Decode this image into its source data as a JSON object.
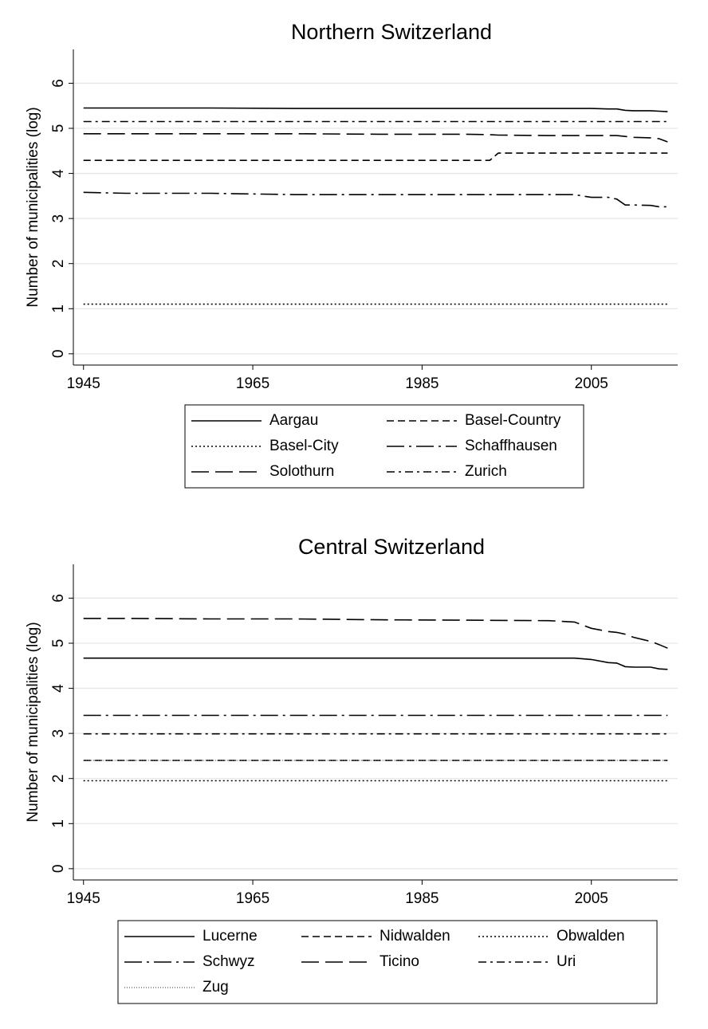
{
  "chart_data": [
    {
      "type": "line",
      "title": "Northern Switzerland",
      "ylabel": "Number of municipalities (log)",
      "x": [
        1945,
        1950,
        1960,
        1970,
        1980,
        1990,
        1993,
        1994,
        2000,
        2003,
        2005,
        2007,
        2008,
        2009,
        2010,
        2012,
        2013,
        2014
      ],
      "xlim": [
        1943.8,
        2015.2
      ],
      "xticks": [
        1945,
        1965,
        1985,
        2005
      ],
      "ylim": [
        -0.25,
        6.75
      ],
      "yticks": [
        0,
        1,
        2,
        3,
        4,
        5,
        6
      ],
      "grid": true,
      "legend": "bottom",
      "series": [
        {
          "name": "Aargau",
          "color": "#000000",
          "dash": "solid",
          "values": [
            5.45,
            5.45,
            5.45,
            5.44,
            5.44,
            5.44,
            5.44,
            5.44,
            5.44,
            5.44,
            5.44,
            5.43,
            5.43,
            5.4,
            5.39,
            5.39,
            5.38,
            5.37
          ]
        },
        {
          "name": "Basel-Country",
          "color": "#000000",
          "dash": "dash",
          "values": [
            4.29,
            4.29,
            4.29,
            4.29,
            4.29,
            4.29,
            4.29,
            4.45,
            4.45,
            4.45,
            4.45,
            4.45,
            4.45,
            4.45,
            4.45,
            4.45,
            4.45,
            4.45
          ]
        },
        {
          "name": "Basel-City",
          "color": "#000000",
          "dash": "dot",
          "values": [
            1.1,
            1.1,
            1.1,
            1.1,
            1.1,
            1.1,
            1.1,
            1.1,
            1.1,
            1.1,
            1.1,
            1.1,
            1.1,
            1.1,
            1.1,
            1.1,
            1.1,
            1.1
          ]
        },
        {
          "name": "Schaffhausen",
          "color": "#000000",
          "dash": "longdashdot",
          "values": [
            3.58,
            3.56,
            3.56,
            3.53,
            3.53,
            3.53,
            3.53,
            3.53,
            3.53,
            3.53,
            3.47,
            3.47,
            3.43,
            3.3,
            3.3,
            3.29,
            3.26,
            3.26
          ]
        },
        {
          "name": "Solothurn",
          "color": "#000000",
          "dash": "longdash",
          "values": [
            4.88,
            4.88,
            4.88,
            4.88,
            4.87,
            4.87,
            4.86,
            4.85,
            4.84,
            4.84,
            4.84,
            4.84,
            4.84,
            4.82,
            4.8,
            4.79,
            4.77,
            4.7
          ]
        },
        {
          "name": "Zurich",
          "color": "#000000",
          "dash": "dashdot",
          "values": [
            5.15,
            5.15,
            5.15,
            5.15,
            5.15,
            5.15,
            5.15,
            5.15,
            5.15,
            5.15,
            5.15,
            5.15,
            5.15,
            5.15,
            5.15,
            5.15,
            5.15,
            5.15
          ]
        }
      ]
    },
    {
      "type": "line",
      "title": "Central Switzerland",
      "ylabel": "Number of municipalities (log)",
      "x": [
        1945,
        1950,
        1960,
        1970,
        1980,
        1990,
        2000,
        2003,
        2005,
        2007,
        2008,
        2009,
        2010,
        2012,
        2013,
        2014
      ],
      "xlim": [
        1943.8,
        2015.2
      ],
      "xticks": [
        1945,
        1965,
        1985,
        2005
      ],
      "ylim": [
        -0.25,
        6.75
      ],
      "yticks": [
        0,
        1,
        2,
        3,
        4,
        5,
        6
      ],
      "grid": true,
      "legend": "bottom",
      "series": [
        {
          "name": "Lucerne",
          "color": "#000000",
          "dash": "solid",
          "values": [
            4.67,
            4.67,
            4.67,
            4.67,
            4.67,
            4.67,
            4.67,
            4.67,
            4.64,
            4.57,
            4.56,
            4.48,
            4.47,
            4.47,
            4.43,
            4.42
          ]
        },
        {
          "name": "Nidwalden",
          "color": "#000000",
          "dash": "dash",
          "values": [
            2.4,
            2.4,
            2.4,
            2.4,
            2.4,
            2.4,
            2.4,
            2.4,
            2.4,
            2.4,
            2.4,
            2.4,
            2.4,
            2.4,
            2.4,
            2.4
          ]
        },
        {
          "name": "Obwalden",
          "color": "#000000",
          "dash": "dot",
          "values": [
            1.95,
            1.95,
            1.95,
            1.95,
            1.95,
            1.95,
            1.95,
            1.95,
            1.95,
            1.95,
            1.95,
            1.95,
            1.95,
            1.95,
            1.95,
            1.95
          ]
        },
        {
          "name": "Schwyz",
          "color": "#000000",
          "dash": "longdashdot",
          "values": [
            3.4,
            3.4,
            3.4,
            3.4,
            3.4,
            3.4,
            3.4,
            3.4,
            3.4,
            3.4,
            3.4,
            3.4,
            3.4,
            3.4,
            3.4,
            3.4
          ]
        },
        {
          "name": "Ticino",
          "color": "#000000",
          "dash": "longdash",
          "values": [
            5.55,
            5.55,
            5.54,
            5.54,
            5.52,
            5.51,
            5.5,
            5.47,
            5.33,
            5.26,
            5.24,
            5.2,
            5.13,
            5.04,
            4.97,
            4.89
          ]
        },
        {
          "name": "Uri",
          "color": "#000000",
          "dash": "dashdot",
          "values": [
            2.99,
            2.99,
            2.99,
            2.99,
            2.99,
            2.99,
            2.99,
            2.99,
            2.99,
            2.99,
            2.99,
            2.99,
            2.99,
            2.99,
            2.99,
            2.99
          ]
        },
        {
          "name": "Zug",
          "color": "#777777",
          "dash": "finedot",
          "values": [
            2.4,
            2.4,
            2.4,
            2.4,
            2.4,
            2.4,
            2.4,
            2.4,
            2.4,
            2.4,
            2.4,
            2.4,
            2.4,
            2.4,
            2.4,
            2.4
          ]
        }
      ]
    }
  ]
}
